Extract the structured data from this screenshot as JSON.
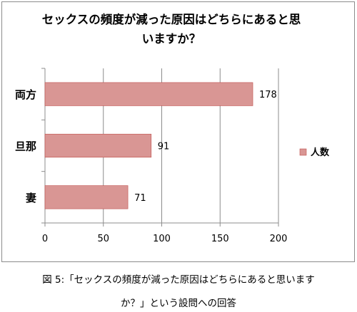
{
  "chart_data": {
    "type": "bar",
    "orientation": "horizontal",
    "title_lines": [
      "セックスの頻度が減った原因はどちらにあると思",
      "いますか？"
    ],
    "categories": [
      "両方",
      "旦那",
      "妻"
    ],
    "series": [
      {
        "name": "人数",
        "values": [
          178,
          91,
          71
        ],
        "color": "#d99694"
      }
    ],
    "xlim": [
      0,
      200
    ],
    "xticks": [
      0,
      50,
      100,
      150,
      200
    ],
    "grid": "vertical",
    "legend": "right",
    "data_labels": true
  },
  "caption": {
    "line1": "図 5:「セックスの頻度が減った原因はどちらにあると思います",
    "line2": "か？」という設問への回答"
  }
}
